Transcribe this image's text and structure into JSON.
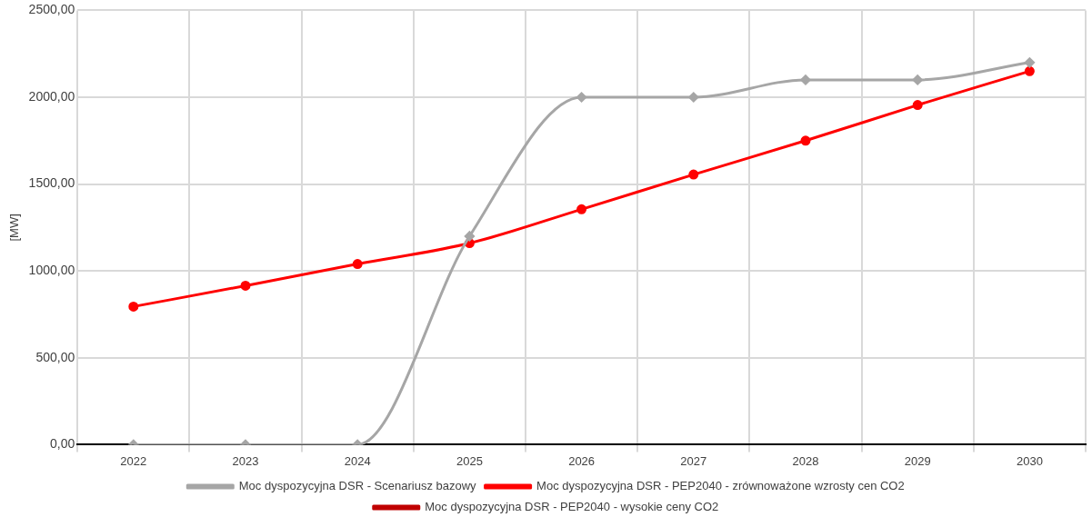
{
  "chart_data": {
    "type": "line",
    "ylabel": "[MW]",
    "categories": [
      "2022",
      "2023",
      "2024",
      "2025",
      "2026",
      "2027",
      "2028",
      "2029",
      "2030"
    ],
    "series": [
      {
        "name": "Moc dyspozycyjna DSR - Scenariusz bazowy",
        "color": "#a6a6a6",
        "marker": "diamond",
        "values": [
          0,
          0,
          0,
          1200,
          2000,
          2000,
          2100,
          2100,
          2200
        ]
      },
      {
        "name": "Moc dyspozycyjna DSR - PEP2040 - zrównoważone wzrosty cen CO2",
        "color": "#ff0000",
        "marker": "circle",
        "values": [
          795,
          915,
          1040,
          1160,
          1355,
          1555,
          1750,
          1955,
          2150
        ]
      },
      {
        "name": "Moc dyspozycyjna DSR - PEP2040 - wysokie ceny CO2",
        "color": "#c00000",
        "marker": "circle",
        "values": [
          null,
          null,
          null,
          null,
          null,
          null,
          null,
          null,
          null
        ]
      }
    ],
    "ylim": [
      0,
      2500
    ],
    "yticks": [
      {
        "value": 0,
        "label": "0,00"
      },
      {
        "value": 500,
        "label": "500,00"
      },
      {
        "value": 1000,
        "label": "1000,00"
      },
      {
        "value": 1500,
        "label": "1500,00"
      },
      {
        "value": 2000,
        "label": "2000,00"
      },
      {
        "value": 2500,
        "label": "2500,00"
      }
    ],
    "grid": true,
    "legend": "bottom",
    "line_style": "solid"
  }
}
